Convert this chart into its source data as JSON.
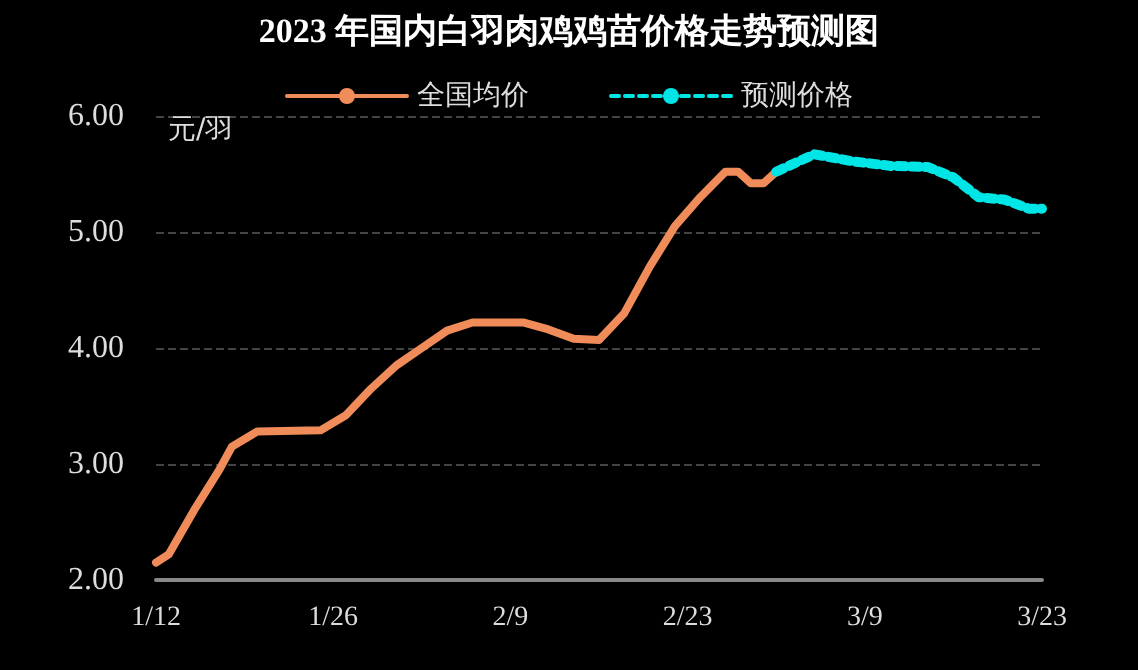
{
  "chart_data": {
    "type": "line",
    "title": "2023 年国内白羽肉鸡鸡苗价格走势预测图",
    "ylabel": "元/羽",
    "xlim": [
      "2023-01-12",
      "2023-03-23"
    ],
    "xticks": [
      {
        "value": "2023-01-12",
        "label": "1/12"
      },
      {
        "value": "2023-01-26",
        "label": "1/26"
      },
      {
        "value": "2023-02-09",
        "label": "2/9"
      },
      {
        "value": "2023-02-23",
        "label": "2/23"
      },
      {
        "value": "2023-03-09",
        "label": "3/9"
      },
      {
        "value": "2023-03-23",
        "label": "3/23"
      }
    ],
    "ylim": [
      2,
      6
    ],
    "yticks": [
      {
        "value": 2,
        "label": "2.00"
      },
      {
        "value": 3,
        "label": "3.00"
      },
      {
        "value": 4,
        "label": "4.00"
      },
      {
        "value": 5,
        "label": "5.00"
      },
      {
        "value": 6,
        "label": "6.00"
      }
    ],
    "grid": "y",
    "legend": "top",
    "marker": "none",
    "series": [
      {
        "name": "全国均价",
        "color": "#f08c5a",
        "line_style": "solid",
        "x": [
          "2023-01-12",
          "2023-01-13",
          "2023-01-15",
          "2023-01-17",
          "2023-01-18",
          "2023-01-20",
          "2023-01-25",
          "2023-01-27",
          "2023-01-29",
          "2023-01-31",
          "2023-02-02",
          "2023-02-04",
          "2023-02-06",
          "2023-02-10",
          "2023-02-12",
          "2023-02-14",
          "2023-02-16",
          "2023-02-18",
          "2023-02-20",
          "2023-02-22",
          "2023-02-24",
          "2023-02-26",
          "2023-02-27",
          "2023-02-28",
          "2023-03-01",
          "2023-03-02"
        ],
        "values": [
          2.15,
          2.22,
          2.6,
          2.95,
          3.15,
          3.28,
          3.29,
          3.42,
          3.65,
          3.85,
          4.0,
          4.15,
          4.22,
          4.22,
          4.16,
          4.08,
          4.07,
          4.3,
          4.7,
          5.05,
          5.3,
          5.52,
          5.52,
          5.42,
          5.42,
          5.52
        ]
      },
      {
        "name": "预测价格",
        "color": "#00e5e5",
        "line_style": "dashed",
        "x": [
          "2023-03-02",
          "2023-03-05",
          "2023-03-08",
          "2023-03-11",
          "2023-03-14",
          "2023-03-16",
          "2023-03-18",
          "2023-03-20",
          "2023-03-22",
          "2023-03-23"
        ],
        "values": [
          5.52,
          5.67,
          5.61,
          5.57,
          5.56,
          5.47,
          5.3,
          5.28,
          5.2,
          5.2
        ]
      }
    ]
  }
}
